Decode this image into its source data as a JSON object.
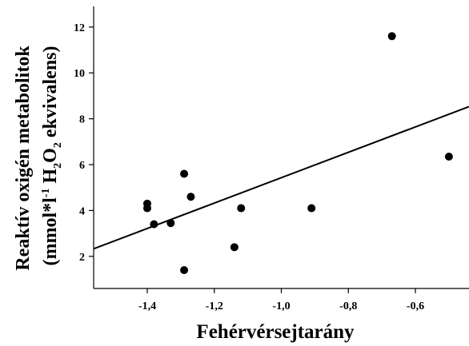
{
  "chart_data": {
    "type": "scatter",
    "xlabel": "Fehérvérsejtarány",
    "ylabel_line1": "Reaktív oxigén metabolitok",
    "ylabel_line2": {
      "prefix": "(mmol*l",
      "sup": "-1",
      "mid1": " H",
      "sub1": "2",
      "mid2": "O",
      "sub2": "2",
      "suffix": " ekvivalens)"
    },
    "xlim": [
      -1.56,
      -0.44
    ],
    "ylim": [
      0.6,
      12.9
    ],
    "x_ticks": [
      -1.4,
      -1.2,
      -1.0,
      -0.8,
      -0.6
    ],
    "x_tick_labels": [
      "-1,4",
      "-1,2",
      "-1,0",
      "-0,8",
      "-0,6"
    ],
    "y_ticks": [
      2,
      4,
      6,
      8,
      10,
      12
    ],
    "y_tick_labels": [
      "2",
      "4",
      "6",
      "8",
      "10",
      "12"
    ],
    "grid": false,
    "series": [
      {
        "points": [
          {
            "x": -1.4,
            "y": 4.3
          },
          {
            "x": -1.4,
            "y": 4.1
          },
          {
            "x": -1.38,
            "y": 3.4
          },
          {
            "x": -1.33,
            "y": 3.45
          },
          {
            "x": -1.29,
            "y": 5.6
          },
          {
            "x": -1.29,
            "y": 1.4
          },
          {
            "x": -1.27,
            "y": 4.6
          },
          {
            "x": -1.14,
            "y": 2.4
          },
          {
            "x": -1.12,
            "y": 4.1
          },
          {
            "x": -0.91,
            "y": 4.1
          },
          {
            "x": -0.67,
            "y": 11.6
          },
          {
            "x": -0.5,
            "y": 6.35
          }
        ]
      }
    ],
    "trendline": {
      "x": [
        -1.56,
        -0.44
      ],
      "y": [
        2.33,
        8.53
      ]
    },
    "colors": {
      "marker": "#000000",
      "line": "#000000",
      "axis": "#000000"
    }
  }
}
